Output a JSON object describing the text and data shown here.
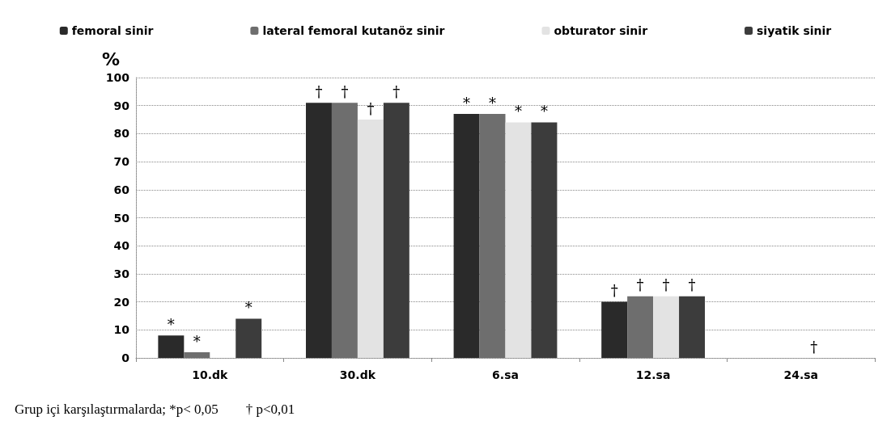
{
  "chart_data": {
    "type": "bar",
    "ylabel": "%",
    "categories": [
      "10.dk",
      "30.dk",
      "6.sa",
      "12.sa",
      "24.sa"
    ],
    "series": [
      {
        "name": "femoral sinir",
        "color": "#2a2a2a",
        "values": [
          8,
          91,
          87,
          20,
          0
        ],
        "value_labels": [
          "*",
          "†",
          "*",
          "†",
          null
        ]
      },
      {
        "name": "lateral femoral kutanöz sinir",
        "color": "#6e6e6e",
        "values": [
          2,
          91,
          87,
          22,
          0
        ],
        "value_labels": [
          "*",
          "†",
          "*",
          "†",
          null
        ]
      },
      {
        "name": "obturator sinir",
        "color": "#e3e3e3",
        "values": [
          0,
          85,
          84,
          22,
          0
        ],
        "value_labels": [
          null,
          "†",
          "*",
          "†",
          "†"
        ]
      },
      {
        "name": "siyatik sinir",
        "color": "#3c3c3c",
        "values": [
          14,
          91,
          84,
          22,
          0
        ],
        "value_labels": [
          "*",
          "†",
          "*",
          "†",
          null
        ]
      }
    ],
    "ylim": [
      0,
      100
    ],
    "yticks": [
      0,
      10,
      20,
      30,
      40,
      50,
      60,
      70,
      80,
      90,
      100
    ],
    "grid": "y",
    "legend": "top",
    "annotations": [
      "Grup içi karşılaştırmalarda; *p< 0,05        † p<0,01"
    ]
  }
}
